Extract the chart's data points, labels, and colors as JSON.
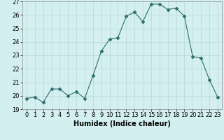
{
  "x": [
    0,
    1,
    2,
    3,
    4,
    5,
    6,
    7,
    8,
    9,
    10,
    11,
    12,
    13,
    14,
    15,
    16,
    17,
    18,
    19,
    20,
    21,
    22,
    23
  ],
  "y": [
    19.8,
    19.9,
    19.5,
    20.5,
    20.5,
    20.0,
    20.3,
    19.8,
    21.5,
    23.3,
    24.2,
    24.3,
    25.9,
    26.2,
    25.5,
    26.8,
    26.8,
    26.4,
    26.5,
    25.9,
    22.9,
    22.8,
    21.2,
    19.9
  ],
  "xlabel": "Humidex (Indice chaleur)",
  "xlim": [
    -0.5,
    23.5
  ],
  "ylim": [
    19,
    27
  ],
  "yticks": [
    19,
    20,
    21,
    22,
    23,
    24,
    25,
    26,
    27
  ],
  "xticks": [
    0,
    1,
    2,
    3,
    4,
    5,
    6,
    7,
    8,
    9,
    10,
    11,
    12,
    13,
    14,
    15,
    16,
    17,
    18,
    19,
    20,
    21,
    22,
    23
  ],
  "line_color": "#2d6e6e",
  "marker": "D",
  "marker_size": 2.5,
  "bg_color": "#d4efef",
  "grid_color": "#b8d8d8",
  "label_fontsize": 7,
  "tick_fontsize": 6
}
